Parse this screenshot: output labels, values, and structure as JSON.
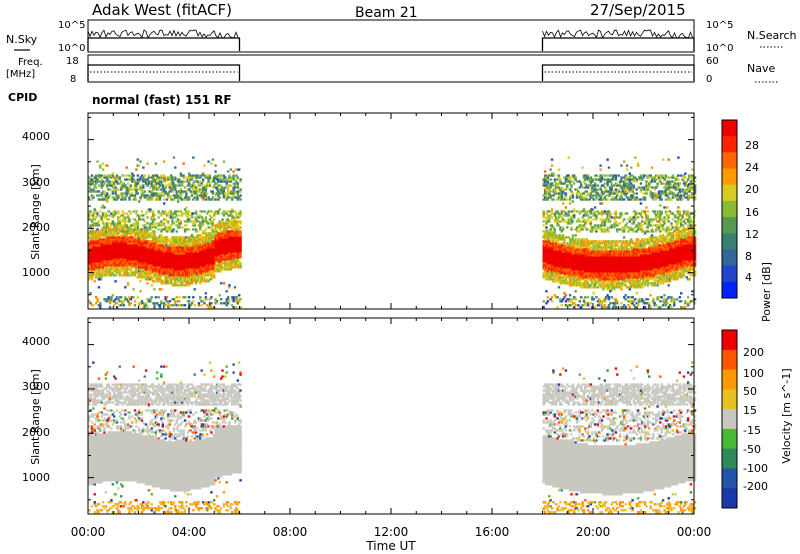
{
  "header": {
    "station": "Adak West (fitACF)",
    "beam": "Beam 21",
    "date": "27/Sep/2015"
  },
  "panels": {
    "nsky_label": "N.Sky",
    "nsearch_label": "N.Search",
    "log_hi": "10^5",
    "log_lo": "10^0",
    "freq_label": "Freq.",
    "freq_unit": "[MHz]",
    "freq_ticks": [
      "18",
      "8"
    ],
    "nave_label": "Nave",
    "nave_ticks": [
      "60",
      "0"
    ],
    "cpid_label": "CPID",
    "cpid_value": "normal (fast) 151 RF"
  },
  "chart_data": [
    {
      "type": "heatmap",
      "name": "power",
      "ylabel": "Slant Range [km]",
      "xlabel": "Time UT",
      "y_ticks": [
        "4000",
        "3000",
        "2000",
        "1000"
      ],
      "x_ticks": [
        "00:00",
        "04:00",
        "08:00",
        "12:00",
        "16:00",
        "20:00",
        "00:00"
      ],
      "ylim": [
        180,
        4600
      ],
      "xlim": [
        0,
        24
      ],
      "data_segments_ut": [
        [
          0,
          6
        ],
        [
          18,
          24
        ]
      ],
      "colorbar": {
        "label": "Power [dB]",
        "ticks": [
          "28",
          "24",
          "20",
          "16",
          "12",
          "8",
          "4"
        ],
        "colors": [
          "#0022ff",
          "#2244cc",
          "#336699",
          "#3a8070",
          "#559955",
          "#88bb33",
          "#d8cc22",
          "#ff9900",
          "#ff6600",
          "#ff2200",
          "#ee0000"
        ]
      },
      "dominant_band": {
        "range_km": [
          1200,
          1700
        ],
        "power_db": 28
      }
    },
    {
      "type": "heatmap",
      "name": "velocity",
      "ylabel": "Slant Range [km]",
      "xlabel": "Time UT",
      "y_ticks": [
        "4000",
        "3000",
        "2000",
        "1000"
      ],
      "x_ticks": [
        "00:00",
        "04:00",
        "08:00",
        "12:00",
        "16:00",
        "20:00",
        "00:00"
      ],
      "ylim": [
        180,
        4600
      ],
      "xlim": [
        0,
        24
      ],
      "data_segments_ut": [
        [
          0,
          6
        ],
        [
          18,
          24
        ]
      ],
      "colorbar": {
        "label": "Velocity [m s^-1]",
        "ticks": [
          "200",
          "100",
          "50",
          "15",
          "-15",
          "-50",
          "-100",
          "-200"
        ],
        "colors": [
          "#1a3aaa",
          "#2255aa",
          "#2e8b57",
          "#44bb33",
          "#c8c8c0",
          "#e8c020",
          "#ff9900",
          "#ff5500",
          "#ee0000"
        ]
      },
      "dominant_value_ms": 0
    }
  ],
  "footer": {
    "xlabel": "Time UT"
  }
}
